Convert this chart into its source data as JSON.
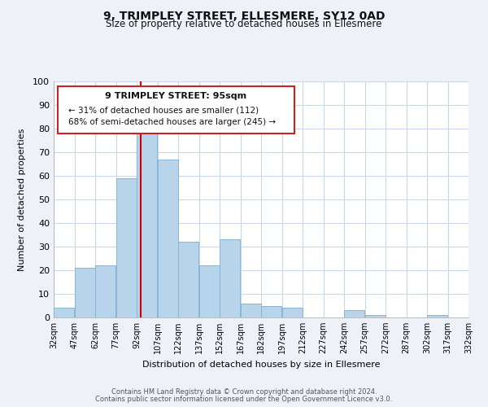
{
  "title": "9, TRIMPLEY STREET, ELLESMERE, SY12 0AD",
  "subtitle": "Size of property relative to detached houses in Ellesmere",
  "xlabel": "Distribution of detached houses by size in Ellesmere",
  "ylabel": "Number of detached properties",
  "bar_color": "#b8d4ea",
  "bar_edge_color": "#8ab4d4",
  "vline_x": 95,
  "vline_color": "#cc0000",
  "annotation_title": "9 TRIMPLEY STREET: 95sqm",
  "annotation_line1": "← 31% of detached houses are smaller (112)",
  "annotation_line2": "68% of semi-detached houses are larger (245) →",
  "bins_left": [
    32,
    47,
    62,
    77,
    92,
    107,
    122,
    137,
    152,
    167,
    182,
    197,
    212,
    227,
    242,
    257,
    272,
    287,
    302,
    317
  ],
  "bin_width": 15,
  "counts": [
    4,
    21,
    22,
    59,
    80,
    67,
    32,
    22,
    33,
    6,
    5,
    4,
    0,
    0,
    3,
    1,
    0,
    0,
    1,
    0
  ],
  "xlim": [
    32,
    332
  ],
  "ylim": [
    0,
    100
  ],
  "yticks": [
    0,
    10,
    20,
    30,
    40,
    50,
    60,
    70,
    80,
    90,
    100
  ],
  "xtick_labels": [
    "32sqm",
    "47sqm",
    "62sqm",
    "77sqm",
    "92sqm",
    "107sqm",
    "122sqm",
    "137sqm",
    "152sqm",
    "167sqm",
    "182sqm",
    "197sqm",
    "212sqm",
    "227sqm",
    "242sqm",
    "257sqm",
    "272sqm",
    "287sqm",
    "302sqm",
    "317sqm",
    "332sqm"
  ],
  "footer_line1": "Contains HM Land Registry data © Crown copyright and database right 2024.",
  "footer_line2": "Contains public sector information licensed under the Open Government Licence v3.0.",
  "bg_color": "#eef2f8",
  "plot_bg_color": "#ffffff",
  "grid_color": "#c8d8ea"
}
